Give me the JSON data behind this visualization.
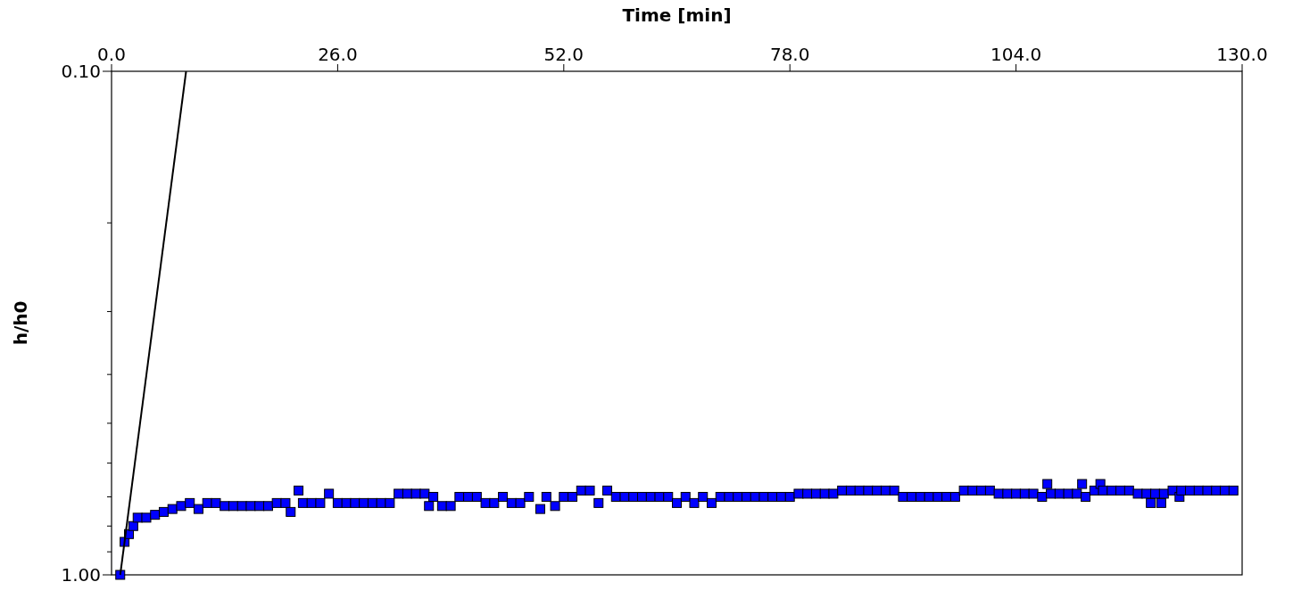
{
  "chart_data": {
    "type": "scatter",
    "xlabel": "Time [min]",
    "ylabel": "h/h0",
    "log": "y",
    "grid": false,
    "xlim": [
      0,
      130
    ],
    "xticks": [
      {
        "value": 0,
        "label": "0.0"
      },
      {
        "value": 26,
        "label": "26.0"
      },
      {
        "value": 52,
        "label": "52.0"
      },
      {
        "value": 78,
        "label": "78.0"
      },
      {
        "value": 104,
        "label": "104.0"
      },
      {
        "value": 130,
        "label": "130.0"
      }
    ],
    "ylim": [
      1.0,
      0.1
    ],
    "yticks": [
      {
        "value": 0.1,
        "label": "0.10"
      },
      {
        "value": 0.2,
        "label": null
      },
      {
        "value": 0.3,
        "label": null
      },
      {
        "value": 0.4,
        "label": null
      },
      {
        "value": 0.5,
        "label": null
      },
      {
        "value": 0.6,
        "label": null
      },
      {
        "value": 0.7,
        "label": null
      },
      {
        "value": 0.8,
        "label": null
      },
      {
        "value": 0.9,
        "label": null
      },
      {
        "value": 1.0,
        "label": "1.00"
      }
    ],
    "series": [
      {
        "type": "line",
        "color": "#000000",
        "marker": "none",
        "line_style": "solid",
        "x": [
          1.0,
          8.57
        ],
        "values": [
          1.0,
          0.1
        ]
      },
      {
        "color": "#0000ff",
        "marker": "square",
        "x": [
          1,
          1.5,
          2,
          2.5,
          3,
          4,
          5,
          6,
          7,
          8,
          9,
          10,
          11,
          12,
          13,
          14,
          15,
          16,
          17,
          18,
          19,
          20,
          20.6,
          21.5,
          22,
          23,
          24,
          25,
          26,
          27,
          28,
          29,
          30,
          31,
          32,
          33,
          34,
          35,
          36,
          36.5,
          37,
          38,
          39,
          40,
          41,
          42,
          43,
          44,
          45,
          46,
          47,
          48,
          49.3,
          50,
          51,
          52,
          53,
          54,
          55,
          56,
          57,
          58,
          59,
          60,
          61,
          62,
          63,
          64,
          65,
          66,
          67,
          68,
          69,
          70,
          71,
          72,
          73,
          74,
          75,
          76,
          77,
          78,
          79,
          80,
          81,
          82,
          83,
          84,
          85,
          86,
          87,
          88,
          89,
          90,
          91,
          92,
          93,
          94,
          95,
          96,
          97,
          98,
          99,
          100,
          101,
          102,
          103,
          104,
          105,
          106,
          107,
          107.6,
          108,
          109,
          110,
          111,
          111.6,
          112,
          113,
          113.7,
          114,
          115,
          116,
          117,
          118,
          119,
          119.5,
          120,
          120.7,
          121,
          122,
          122.8,
          123,
          124,
          125,
          126,
          127,
          128,
          129
        ],
        "values": [
          1.0,
          0.86,
          0.83,
          0.8,
          0.77,
          0.77,
          0.76,
          0.75,
          0.74,
          0.73,
          0.72,
          0.74,
          0.72,
          0.72,
          0.73,
          0.73,
          0.73,
          0.73,
          0.73,
          0.73,
          0.72,
          0.72,
          0.75,
          0.68,
          0.72,
          0.72,
          0.72,
          0.69,
          0.72,
          0.72,
          0.72,
          0.72,
          0.72,
          0.72,
          0.72,
          0.69,
          0.69,
          0.69,
          0.69,
          0.73,
          0.7,
          0.73,
          0.73,
          0.7,
          0.7,
          0.7,
          0.72,
          0.72,
          0.7,
          0.72,
          0.72,
          0.7,
          0.74,
          0.7,
          0.73,
          0.7,
          0.7,
          0.68,
          0.68,
          0.72,
          0.68,
          0.7,
          0.7,
          0.7,
          0.7,
          0.7,
          0.7,
          0.7,
          0.72,
          0.7,
          0.72,
          0.7,
          0.72,
          0.7,
          0.7,
          0.7,
          0.7,
          0.7,
          0.7,
          0.7,
          0.7,
          0.7,
          0.69,
          0.69,
          0.69,
          0.69,
          0.69,
          0.68,
          0.68,
          0.68,
          0.68,
          0.68,
          0.68,
          0.68,
          0.7,
          0.7,
          0.7,
          0.7,
          0.7,
          0.7,
          0.7,
          0.68,
          0.68,
          0.68,
          0.68,
          0.69,
          0.69,
          0.69,
          0.69,
          0.69,
          0.7,
          0.66,
          0.69,
          0.69,
          0.69,
          0.69,
          0.66,
          0.7,
          0.68,
          0.66,
          0.68,
          0.68,
          0.68,
          0.68,
          0.69,
          0.69,
          0.72,
          0.69,
          0.72,
          0.69,
          0.68,
          0.7,
          0.68,
          0.68,
          0.68,
          0.68,
          0.68,
          0.68,
          0.68
        ]
      }
    ]
  }
}
